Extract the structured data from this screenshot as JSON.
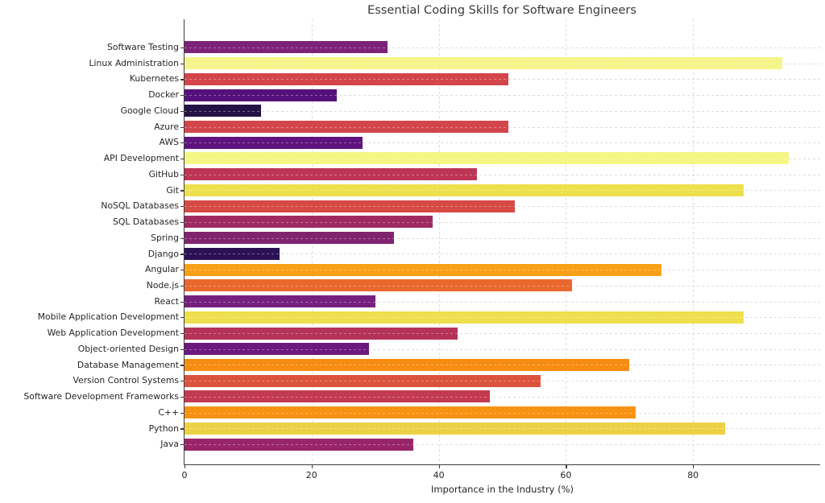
{
  "title": "Essential Coding Skills for Software Engineers",
  "chart_data": {
    "type": "bar",
    "orientation": "horizontal",
    "title": "Essential Coding Skills for Software Engineers",
    "xlabel": "Importance in the Industry (%)",
    "ylabel": "",
    "xlim": [
      0,
      100
    ],
    "xticks": [
      0,
      20,
      40,
      60,
      80
    ],
    "grid": true,
    "legend": "none",
    "categories": [
      "Software Testing",
      "Linux Administration",
      "Kubernetes",
      "Docker",
      "Google Cloud",
      "Azure",
      "AWS",
      "API Development",
      "GitHub",
      "Git",
      "NoSQL Databases",
      "SQL Databases",
      "Spring",
      "Django",
      "Angular",
      "Node.js",
      "React",
      "Mobile Application Development",
      "Web Application Development",
      "Object-oriented Design",
      "Database Management",
      "Version Control Systems",
      "Software Development Frameworks",
      "C++",
      "Python",
      "Java"
    ],
    "values": [
      32,
      94,
      51,
      24,
      12,
      51,
      28,
      95,
      46,
      88,
      52,
      39,
      33,
      15,
      75,
      61,
      30,
      88,
      43,
      29,
      70,
      56,
      48,
      71,
      85,
      36
    ],
    "bar_colors": [
      "#7d2279",
      "#f5f489",
      "#d2464b",
      "#54107b",
      "#241247",
      "#d2464b",
      "#5e137e",
      "#f6f685",
      "#bd3555",
      "#ede04c",
      "#d64a45",
      "#9f2a63",
      "#812470",
      "#2c1156",
      "#f9a019",
      "#e9682e",
      "#75207f",
      "#ede04c",
      "#b53358",
      "#6b197f",
      "#f68d11",
      "#dc533d",
      "#c33a50",
      "#f79212",
      "#edd145",
      "#992569"
    ],
    "colormap": "inferno",
    "gridline_color": "#dcdcdc",
    "axis_color": "#3c3c3c",
    "text_color": "#262626"
  }
}
